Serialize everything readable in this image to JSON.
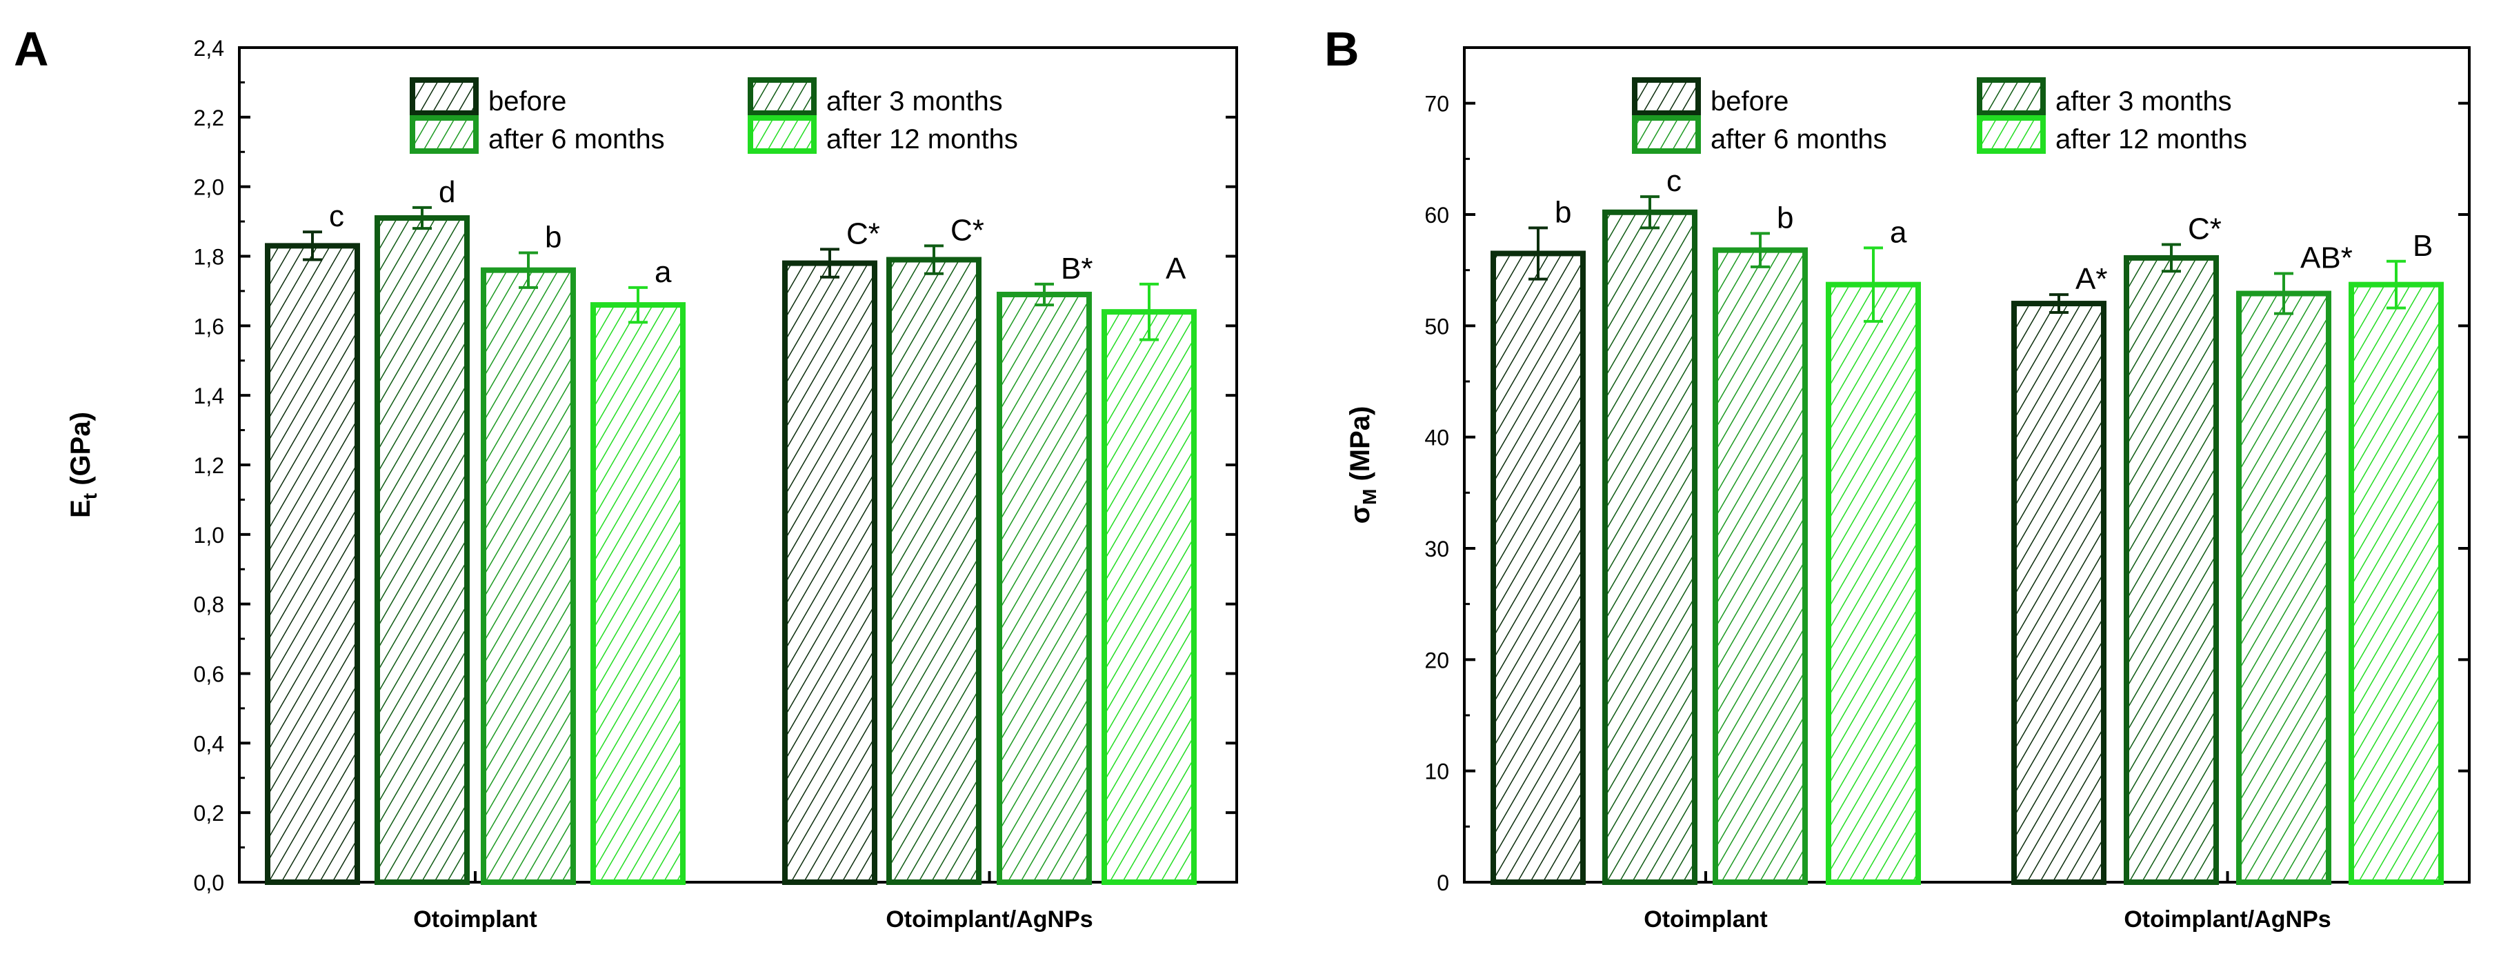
{
  "chart_data": [
    {
      "type": "bar",
      "panel_label": "A",
      "title": "",
      "xlabel": "",
      "ylabel_main": "E",
      "ylabel_sub": "t",
      "ylabel_unit": " (GPa)",
      "ylim": [
        0,
        2.4
      ],
      "yticks": [
        "0,0",
        "0,2",
        "0,4",
        "0,6",
        "0,8",
        "1,0",
        "1,2",
        "1,4",
        "1,6",
        "1,8",
        "2,0",
        "2,2",
        "2,4"
      ],
      "categories": [
        "Otoimplant",
        "Otoimplant/AgNPs"
      ],
      "series": [
        {
          "name": "before",
          "color": "#0b2e0d",
          "values": [
            1.83,
            1.78
          ],
          "errors": [
            0.04,
            0.04
          ],
          "letters": [
            "c",
            "C*"
          ]
        },
        {
          "name": "after 3 months",
          "color": "#0f5c14",
          "values": [
            1.91,
            1.79
          ],
          "errors": [
            0.03,
            0.04
          ],
          "letters": [
            "d",
            "C*"
          ]
        },
        {
          "name": "after 6 months",
          "color": "#1c9a22",
          "values": [
            1.76,
            1.69
          ],
          "errors": [
            0.05,
            0.03
          ],
          "letters": [
            "b",
            "B*"
          ]
        },
        {
          "name": "after 12 months",
          "color": "#22dd22",
          "values": [
            1.66,
            1.64
          ],
          "errors": [
            0.05,
            0.08
          ],
          "letters": [
            "a",
            "A"
          ]
        }
      ],
      "legend": "top-center",
      "grid": false
    },
    {
      "type": "bar",
      "panel_label": "B",
      "title": "",
      "xlabel": "",
      "ylabel_main": "σ",
      "ylabel_sub": "M",
      "ylabel_unit": " (MPa)",
      "ylim": [
        0,
        75
      ],
      "yticks": [
        "0",
        "10",
        "20",
        "30",
        "40",
        "50",
        "60",
        "70"
      ],
      "categories": [
        "Otoimplant",
        "Otoimplant/AgNPs"
      ],
      "series": [
        {
          "name": "before",
          "color": "#0b2e0d",
          "values": [
            56.5,
            52.0
          ],
          "errors": [
            2.3,
            0.8
          ],
          "letters": [
            "b",
            "A*"
          ]
        },
        {
          "name": "after 3 months",
          "color": "#0f5c14",
          "values": [
            60.2,
            56.1
          ],
          "errors": [
            1.4,
            1.2
          ],
          "letters": [
            "c",
            "C*"
          ]
        },
        {
          "name": "after 6 months",
          "color": "#1c9a22",
          "values": [
            56.8,
            52.9
          ],
          "errors": [
            1.5,
            1.8
          ],
          "letters": [
            "b",
            "AB*"
          ]
        },
        {
          "name": "after 12 months",
          "color": "#22dd22",
          "values": [
            53.7,
            53.7
          ],
          "errors": [
            3.3,
            2.1
          ],
          "letters": [
            "a",
            "B"
          ]
        }
      ],
      "legend": "top-center",
      "grid": false
    }
  ]
}
